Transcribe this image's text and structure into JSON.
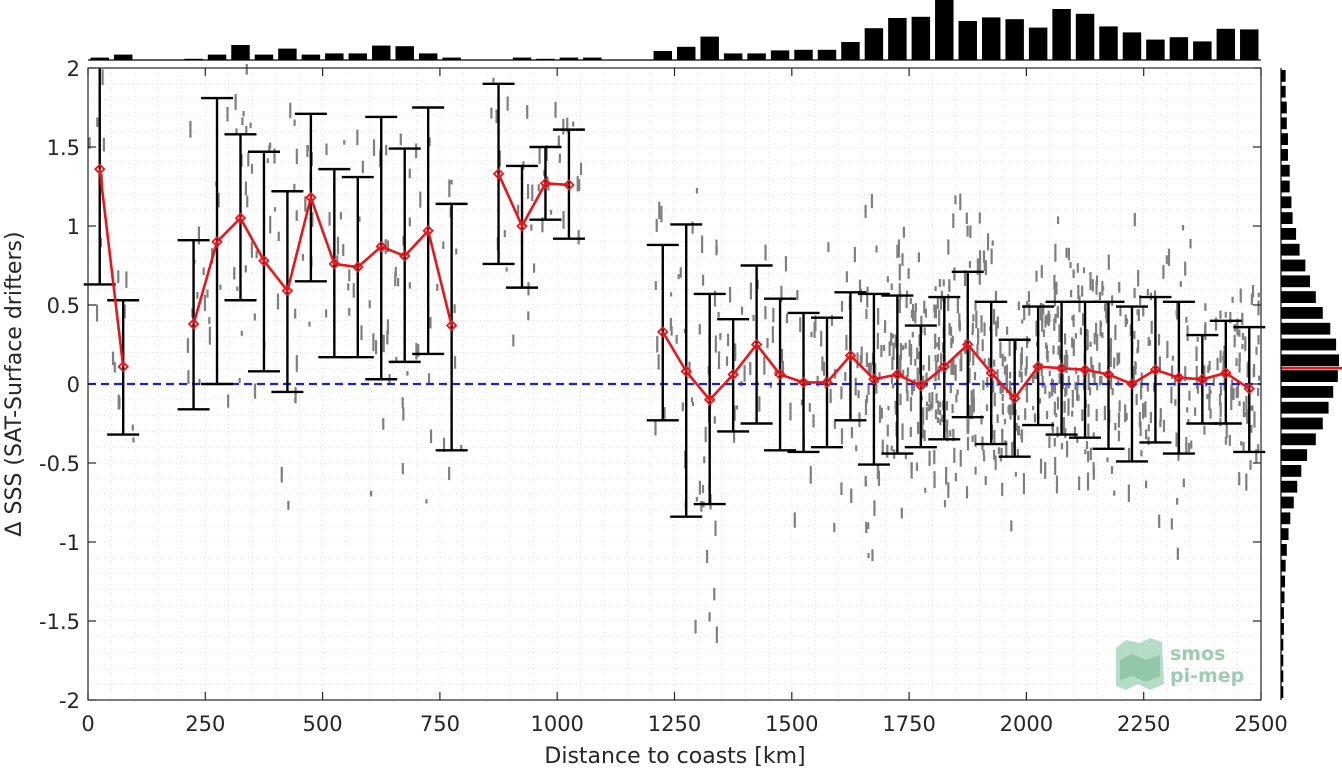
{
  "chart_data": {
    "type": "scatter",
    "title": "",
    "xlabel": "Distance to coasts [km]",
    "ylabel": "Δ SSS (SAT-Surface drifters)",
    "xlim": [
      0,
      2500
    ],
    "ylim": [
      -2,
      2
    ],
    "x_ticks": [
      "0",
      "250",
      "500",
      "750",
      "1000",
      "1250",
      "1500",
      "1750",
      "2000",
      "2250",
      "2500"
    ],
    "y_ticks": [
      "2",
      "1.5",
      "1",
      "0.5",
      "0",
      "-0.5",
      "-1",
      "-1.5",
      "-2"
    ],
    "grid": true,
    "reference_line": {
      "y": 0,
      "color": "#1f1fd6",
      "style": "dashed"
    },
    "series": [
      {
        "style": "line-with-errorbars",
        "color": "#e8161b",
        "points": [
          {
            "x": 25,
            "y": 1.36,
            "lo": 0.63,
            "hi": 2.05
          },
          {
            "x": 75,
            "y": 0.11,
            "lo": -0.32,
            "hi": 0.53
          },
          null,
          {
            "x": 225,
            "y": 0.38,
            "lo": -0.16,
            "hi": 0.91
          },
          {
            "x": 275,
            "y": 0.9,
            "lo": 0.0,
            "hi": 1.81
          },
          {
            "x": 325,
            "y": 1.05,
            "lo": 0.53,
            "hi": 1.58
          },
          {
            "x": 375,
            "y": 0.78,
            "lo": 0.08,
            "hi": 1.47
          },
          {
            "x": 425,
            "y": 0.59,
            "lo": -0.05,
            "hi": 1.22
          },
          {
            "x": 475,
            "y": 1.18,
            "lo": 0.65,
            "hi": 1.71
          },
          {
            "x": 525,
            "y": 0.76,
            "lo": 0.17,
            "hi": 1.36
          },
          {
            "x": 575,
            "y": 0.74,
            "lo": 0.17,
            "hi": 1.31
          },
          {
            "x": 625,
            "y": 0.87,
            "lo": 0.03,
            "hi": 1.69
          },
          {
            "x": 675,
            "y": 0.81,
            "lo": 0.14,
            "hi": 1.49
          },
          {
            "x": 725,
            "y": 0.97,
            "lo": 0.19,
            "hi": 1.75
          },
          {
            "x": 775,
            "y": 0.37,
            "lo": -0.42,
            "hi": 1.14
          },
          null,
          {
            "x": 875,
            "y": 1.33,
            "lo": 0.76,
            "hi": 1.9
          },
          {
            "x": 925,
            "y": 1.0,
            "lo": 0.61,
            "hi": 1.38
          },
          {
            "x": 975,
            "y": 1.27,
            "lo": 1.04,
            "hi": 1.5
          },
          {
            "x": 1025,
            "y": 1.26,
            "lo": 0.92,
            "hi": 1.61
          },
          null,
          {
            "x": 1225,
            "y": 0.33,
            "lo": -0.23,
            "hi": 0.88
          },
          {
            "x": 1275,
            "y": 0.08,
            "lo": -0.84,
            "hi": 1.01
          },
          {
            "x": 1325,
            "y": -0.1,
            "lo": -0.76,
            "hi": 0.57
          },
          {
            "x": 1375,
            "y": 0.06,
            "lo": -0.3,
            "hi": 0.41
          },
          {
            "x": 1425,
            "y": 0.25,
            "lo": -0.25,
            "hi": 0.75
          },
          {
            "x": 1475,
            "y": 0.06,
            "lo": -0.42,
            "hi": 0.54
          },
          {
            "x": 1525,
            "y": 0.01,
            "lo": -0.43,
            "hi": 0.45
          },
          {
            "x": 1575,
            "y": 0.01,
            "lo": -0.4,
            "hi": 0.42
          },
          {
            "x": 1625,
            "y": 0.18,
            "lo": -0.23,
            "hi": 0.58
          },
          {
            "x": 1675,
            "y": 0.03,
            "lo": -0.51,
            "hi": 0.57
          },
          {
            "x": 1725,
            "y": 0.06,
            "lo": -0.44,
            "hi": 0.56
          },
          {
            "x": 1775,
            "y": -0.01,
            "lo": -0.4,
            "hi": 0.37
          },
          {
            "x": 1825,
            "y": 0.11,
            "lo": -0.35,
            "hi": 0.55
          },
          {
            "x": 1875,
            "y": 0.25,
            "lo": -0.21,
            "hi": 0.71
          },
          {
            "x": 1925,
            "y": 0.07,
            "lo": -0.38,
            "hi": 0.52
          },
          {
            "x": 1975,
            "y": -0.09,
            "lo": -0.46,
            "hi": 0.28
          },
          {
            "x": 2025,
            "y": 0.11,
            "lo": -0.26,
            "hi": 0.49
          },
          {
            "x": 2075,
            "y": 0.1,
            "lo": -0.32,
            "hi": 0.52
          },
          {
            "x": 2125,
            "y": 0.09,
            "lo": -0.34,
            "hi": 0.52
          },
          {
            "x": 2175,
            "y": 0.06,
            "lo": -0.41,
            "hi": 0.52
          },
          {
            "x": 2225,
            "y": 0.0,
            "lo": -0.49,
            "hi": 0.49
          },
          {
            "x": 2275,
            "y": 0.09,
            "lo": -0.37,
            "hi": 0.55
          },
          {
            "x": 2325,
            "y": 0.04,
            "lo": -0.44,
            "hi": 0.52
          },
          {
            "x": 2375,
            "y": 0.03,
            "lo": -0.25,
            "hi": 0.31
          },
          {
            "x": 2425,
            "y": 0.07,
            "lo": -0.25,
            "hi": 0.4
          },
          {
            "x": 2475,
            "y": -0.03,
            "lo": -0.43,
            "hi": 0.36
          }
        ]
      }
    ],
    "top_histogram": {
      "bin_width": 50,
      "bin_starts": [
        0,
        50,
        100,
        150,
        200,
        250,
        300,
        350,
        400,
        450,
        500,
        550,
        600,
        650,
        700,
        750,
        800,
        850,
        900,
        950,
        1000,
        1050,
        1100,
        1150,
        1200,
        1250,
        1300,
        1350,
        1400,
        1450,
        1500,
        1550,
        1600,
        1650,
        1700,
        1750,
        1800,
        1850,
        1900,
        1950,
        2000,
        2050,
        2100,
        2150,
        2200,
        2250,
        2300,
        2350,
        2400,
        2450
      ],
      "relative_counts": [
        0.04,
        0.09,
        0.0,
        0.0,
        0.02,
        0.09,
        0.25,
        0.09,
        0.19,
        0.09,
        0.11,
        0.11,
        0.24,
        0.23,
        0.11,
        0.04,
        0.0,
        0.0,
        0.04,
        0.02,
        0.04,
        0.04,
        0.0,
        0.0,
        0.15,
        0.22,
        0.39,
        0.11,
        0.11,
        0.16,
        0.17,
        0.17,
        0.3,
        0.53,
        0.7,
        0.72,
        1.0,
        0.65,
        0.71,
        0.68,
        0.54,
        0.85,
        0.77,
        0.56,
        0.46,
        0.34,
        0.38,
        0.31,
        0.52,
        0.51
      ]
    },
    "right_histogram": {
      "bin_width": 0.1,
      "bin_starts": [
        1.9,
        1.8,
        1.7,
        1.6,
        1.5,
        1.4,
        1.3,
        1.2,
        1.1,
        1.0,
        0.9,
        0.8,
        0.7,
        0.6,
        0.5,
        0.4,
        0.3,
        0.2,
        0.1,
        0.0,
        -0.1,
        -0.2,
        -0.3,
        -0.4,
        -0.5,
        -0.6,
        -0.7,
        -0.8,
        -0.9,
        -1.0,
        -1.1,
        -1.2,
        -1.3,
        -1.4,
        -1.5,
        -1.6,
        -1.7,
        -1.8,
        -1.9,
        -2.0
      ],
      "relative_counts": [
        0.08,
        0.08,
        0.1,
        0.1,
        0.12,
        0.12,
        0.15,
        0.15,
        0.18,
        0.2,
        0.26,
        0.32,
        0.42,
        0.5,
        0.6,
        0.72,
        0.85,
        0.95,
        1.0,
        0.98,
        0.9,
        0.82,
        0.72,
        0.6,
        0.45,
        0.35,
        0.28,
        0.22,
        0.16,
        0.13,
        0.1,
        0.08,
        0.07,
        0.06,
        0.05,
        0.05,
        0.04,
        0.04,
        0.04,
        0.04
      ],
      "mean_marker": {
        "y": 0.1,
        "color": "#e8161b"
      }
    },
    "colors": {
      "mean_line": "#e8161b",
      "errorbar": "#000000",
      "scatter": "#7f7f7f",
      "zero_line": "#1f1fd6",
      "histogram": "#000000"
    }
  },
  "watermark": {
    "line1": "smos",
    "line2": "pi-mep"
  }
}
